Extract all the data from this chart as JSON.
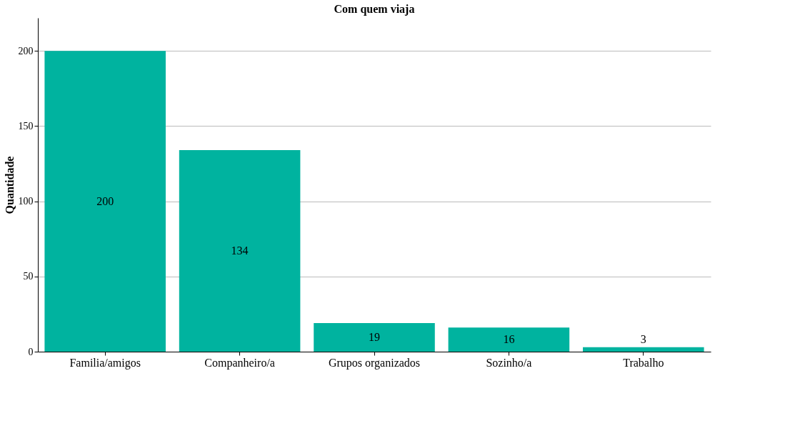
{
  "chart_data": {
    "type": "bar",
    "title": "Com quem viaja",
    "ylabel": "Quantidade",
    "categories": [
      "Familia/amigos",
      "Companheiro/a",
      "Grupos organizados",
      "Sozinho/a",
      "Trabalho"
    ],
    "values": [
      200,
      134,
      19,
      16,
      3
    ],
    "color": "#00b39f",
    "ylim": [
      0,
      222
    ],
    "yticks": [
      0,
      50,
      100,
      150,
      200
    ],
    "grid": "y",
    "data_labels": true
  }
}
